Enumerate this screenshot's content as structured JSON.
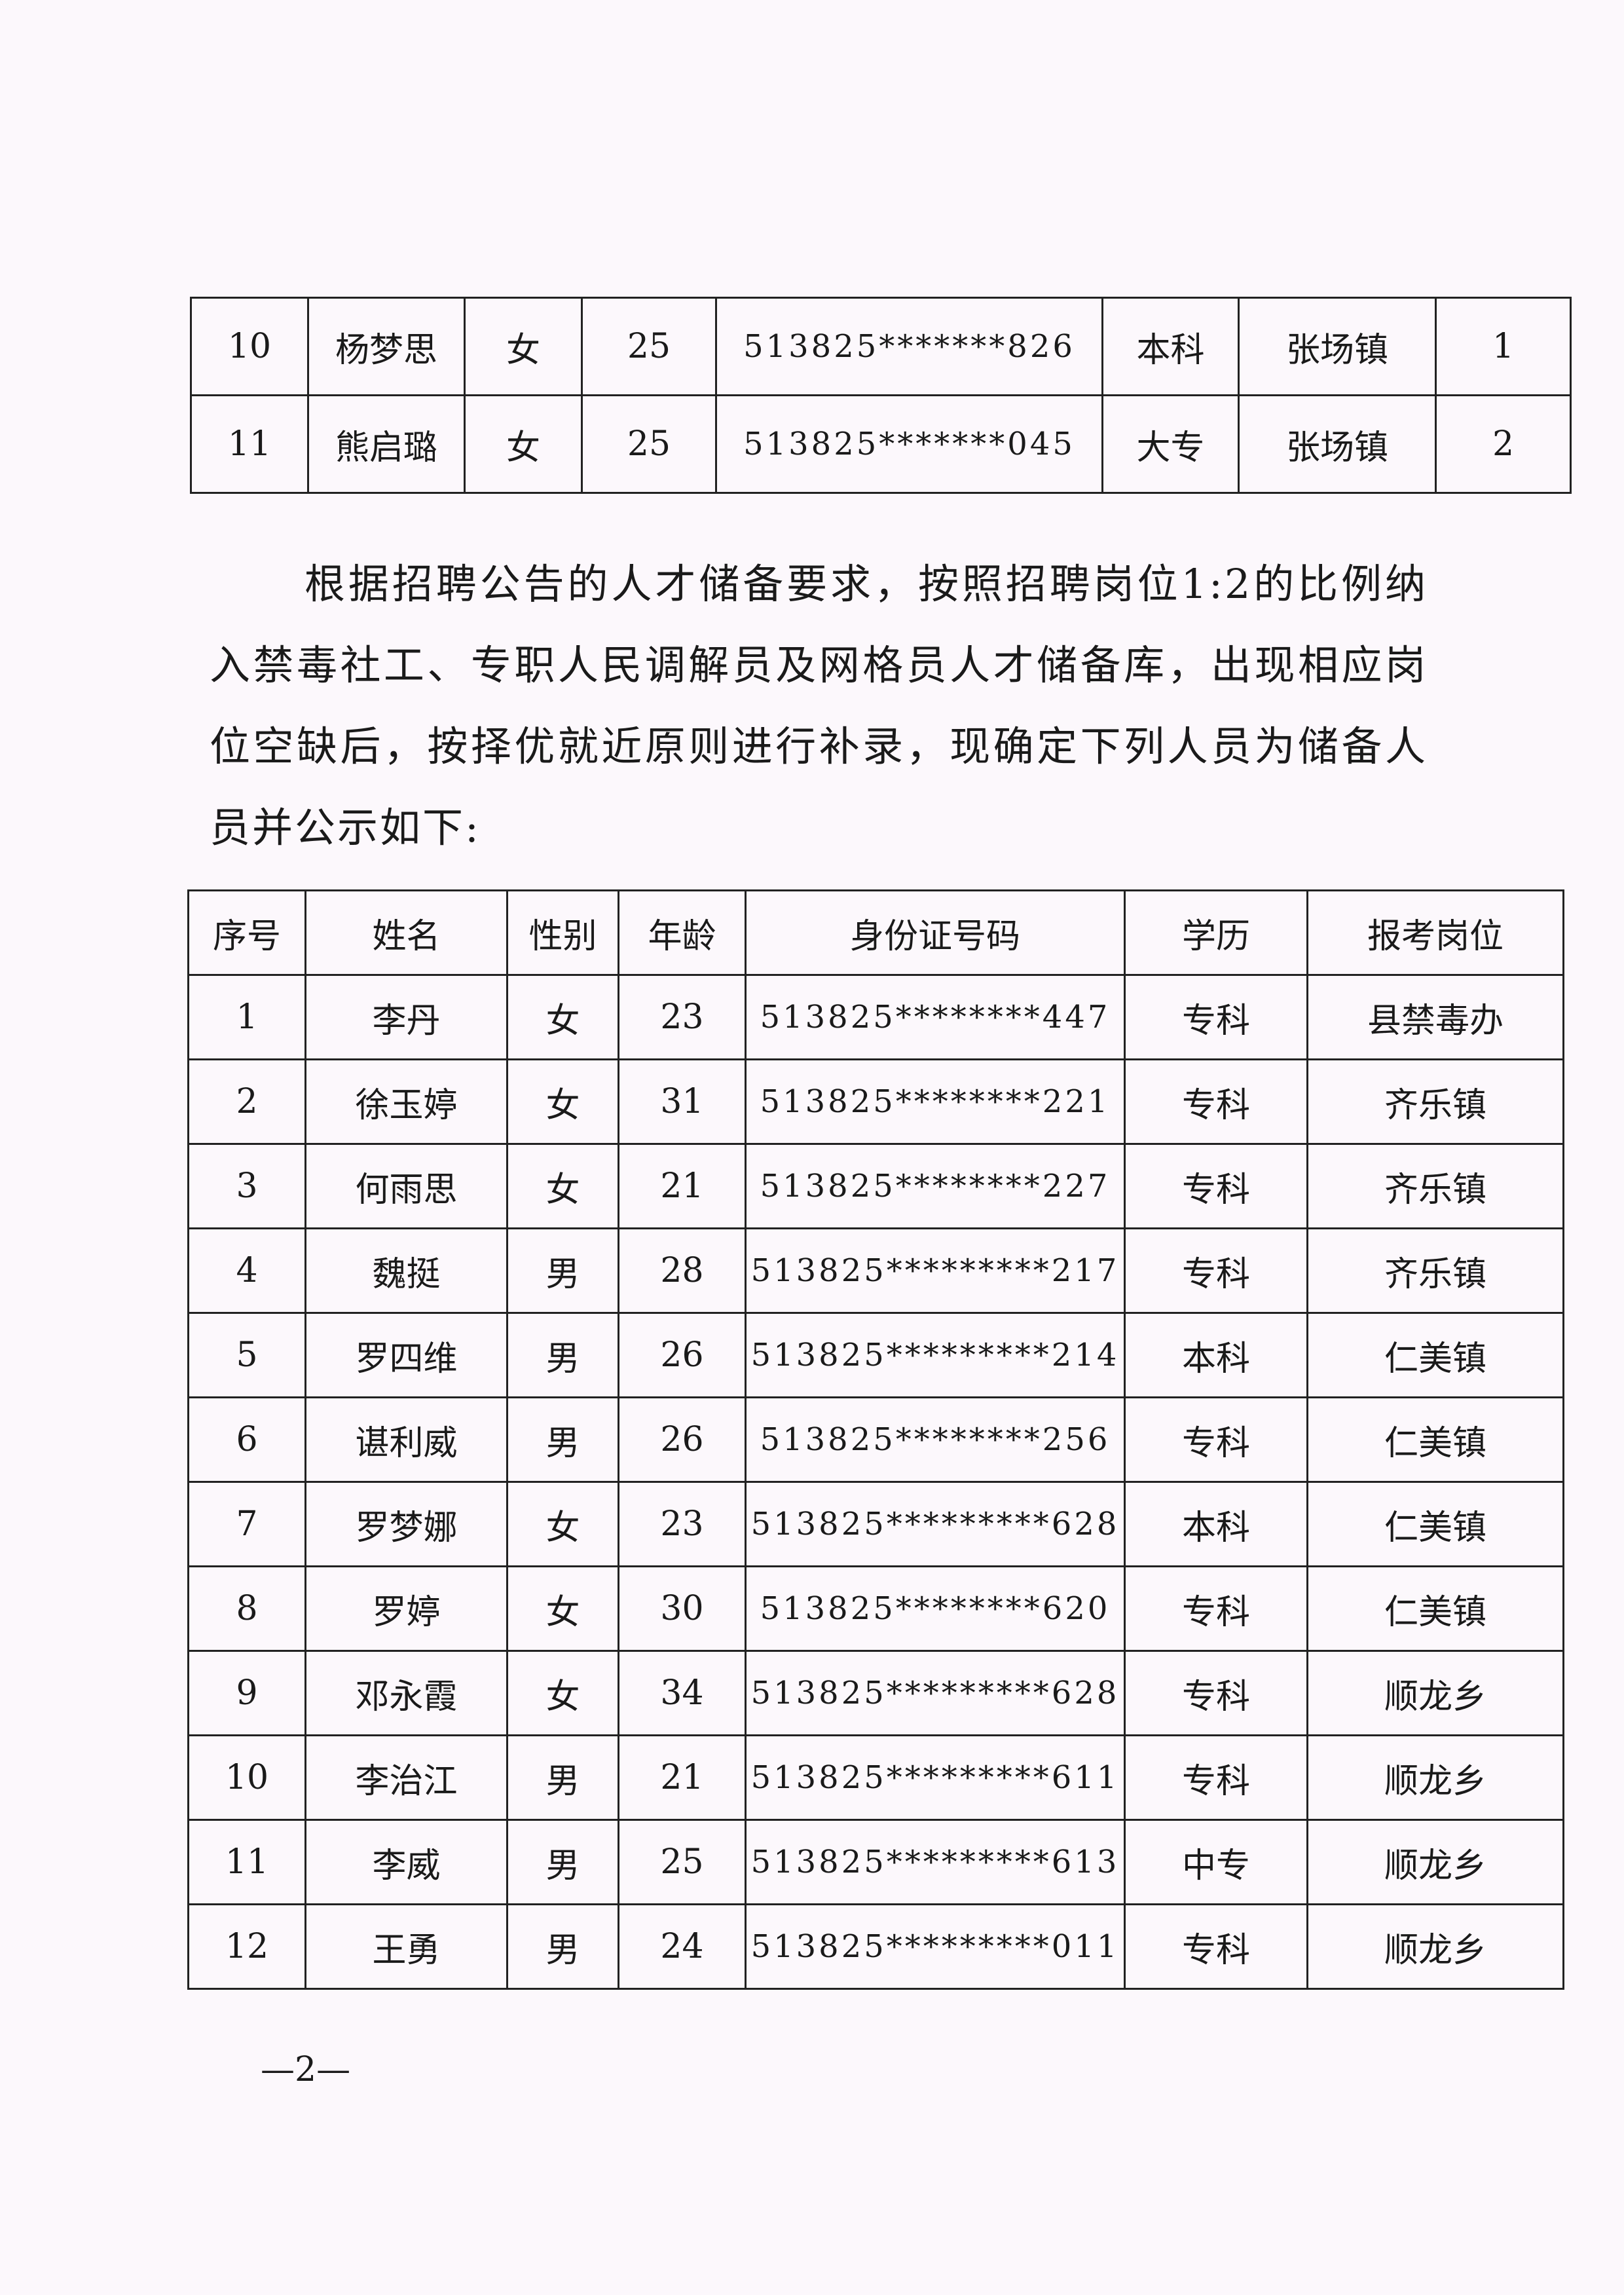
{
  "table1": {
    "rows": [
      {
        "no": "10",
        "name": "杨梦思",
        "gender": "女",
        "age": "25",
        "id": "513825*******826",
        "edu": "本科",
        "post": "张场镇",
        "rank": "1"
      },
      {
        "no": "11",
        "name": "熊启璐",
        "gender": "女",
        "age": "25",
        "id": "513825*******045",
        "edu": "大专",
        "post": "张场镇",
        "rank": "2"
      }
    ]
  },
  "paragraph": "根据招聘公告的人才储备要求，按照招聘岗位1:2的比例纳入禁毒社工、专职人民调解员及网格员人才储备库，出现相应岗位空缺后，按择优就近原则进行补录，现确定下列人员为储备人员并公示如下:",
  "table2": {
    "headers": [
      "序号",
      "姓名",
      "性别",
      "年龄",
      "身份证号码",
      "学历",
      "报考岗位"
    ],
    "rows": [
      {
        "no": "1",
        "name": "李丹",
        "gender": "女",
        "age": "23",
        "id": "513825********447",
        "edu": "专科",
        "post": "县禁毒办"
      },
      {
        "no": "2",
        "name": "徐玉婷",
        "gender": "女",
        "age": "31",
        "id": "513825********221",
        "edu": "专科",
        "post": "齐乐镇"
      },
      {
        "no": "3",
        "name": "何雨思",
        "gender": "女",
        "age": "21",
        "id": "513825********227",
        "edu": "专科",
        "post": "齐乐镇"
      },
      {
        "no": "4",
        "name": "魏挺",
        "gender": "男",
        "age": "28",
        "id": "513825*********217",
        "edu": "专科",
        "post": "齐乐镇"
      },
      {
        "no": "5",
        "name": "罗四维",
        "gender": "男",
        "age": "26",
        "id": "513825*********214",
        "edu": "本科",
        "post": "仁美镇"
      },
      {
        "no": "6",
        "name": "谌利威",
        "gender": "男",
        "age": "26",
        "id": "513825********256",
        "edu": "专科",
        "post": "仁美镇"
      },
      {
        "no": "7",
        "name": "罗梦娜",
        "gender": "女",
        "age": "23",
        "id": "513825*********628",
        "edu": "本科",
        "post": "仁美镇"
      },
      {
        "no": "8",
        "name": "罗婷",
        "gender": "女",
        "age": "30",
        "id": "513825********620",
        "edu": "专科",
        "post": "仁美镇"
      },
      {
        "no": "9",
        "name": "邓永霞",
        "gender": "女",
        "age": "34",
        "id": "513825*********628",
        "edu": "专科",
        "post": "顺龙乡"
      },
      {
        "no": "10",
        "name": "李治江",
        "gender": "男",
        "age": "21",
        "id": "513825*********611",
        "edu": "专科",
        "post": "顺龙乡"
      },
      {
        "no": "11",
        "name": "李威",
        "gender": "男",
        "age": "25",
        "id": "513825*********613",
        "edu": "中专",
        "post": "顺龙乡"
      },
      {
        "no": "12",
        "name": "王勇",
        "gender": "男",
        "age": "24",
        "id": "513825*********011",
        "edu": "专科",
        "post": "顺龙乡"
      }
    ]
  },
  "page_number": "—2—"
}
